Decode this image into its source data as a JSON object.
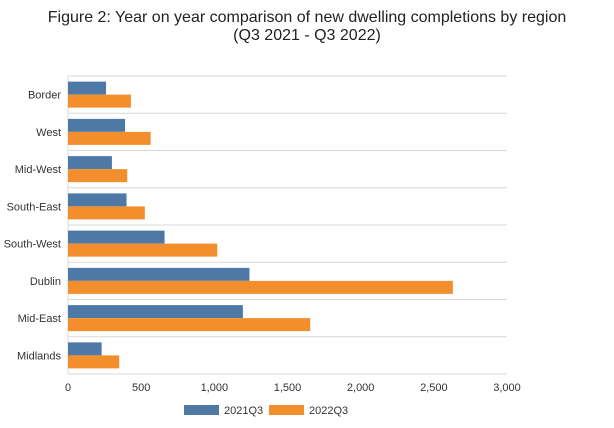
{
  "chart_data": {
    "type": "bar",
    "orientation": "horizontal",
    "title_line1": "Figure 2: Year on year comparison of new dwelling completions by region",
    "title_line2": "(Q3 2021 - Q3 2022)",
    "xlabel": "",
    "ylabel": "",
    "categories": [
      "Border",
      "West",
      "Mid-West",
      "South-East",
      "South-West",
      "Dublin",
      "Mid-East",
      "Midlands"
    ],
    "series": [
      {
        "name": "2021Q3",
        "color": "#4e79a7",
        "values": [
          260,
          390,
          300,
          400,
          660,
          1240,
          1195,
          230
        ]
      },
      {
        "name": "2022Q3",
        "color": "#f28e2b",
        "values": [
          430,
          565,
          405,
          525,
          1020,
          2630,
          1655,
          350
        ]
      }
    ],
    "xlim": [
      0,
      3000
    ],
    "ticks": [
      0,
      500,
      1000,
      1500,
      2000,
      2500,
      3000
    ],
    "tick_labels": [
      "0",
      "500",
      "1,000",
      "1,500",
      "2,000",
      "2,500",
      "3,000"
    ],
    "grid": "horizontal separators",
    "legend_position": "bottom"
  }
}
